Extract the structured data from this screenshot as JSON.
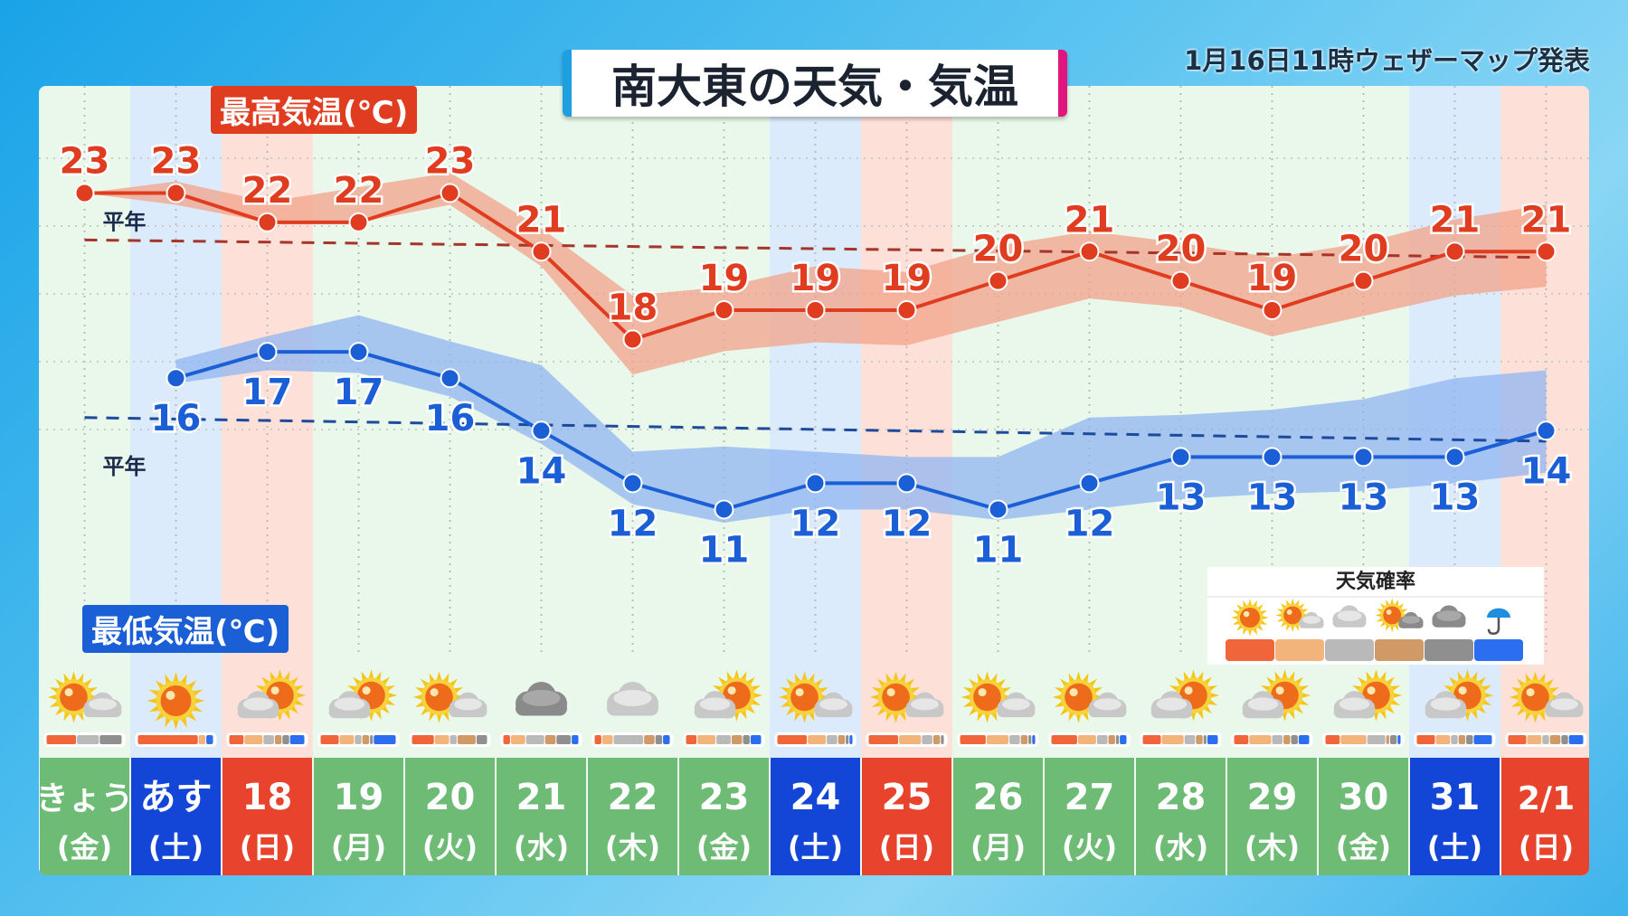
{
  "title": "南大東の天気・気温",
  "issued": "1月16日11時ウェザーマップ発表",
  "colors": {
    "max": "#e03d20",
    "min": "#1b5fd6",
    "weekday": "#6dbb74",
    "saturday": "#1346d6",
    "holiday": "#e8432c"
  },
  "chart_data": {
    "type": "line",
    "title": "南大東の天気・気温",
    "x": [
      "きょう(金)",
      "あす(土)",
      "18(日)",
      "19(月)",
      "20(火)",
      "21(水)",
      "22(木)",
      "23(金)",
      "24(土)",
      "25(日)",
      "26(月)",
      "27(火)",
      "28(水)",
      "29(木)",
      "30(金)",
      "31(土)",
      "2/1(日)"
    ],
    "series": [
      {
        "name": "最高気温(℃)",
        "values": [
          23,
          23,
          22,
          22,
          23,
          21,
          18,
          19,
          19,
          19,
          20,
          21,
          20,
          19,
          20,
          21,
          21
        ],
        "range_low": [
          23,
          22.6,
          22,
          22,
          22.6,
          20.5,
          16.8,
          17.6,
          17.9,
          17.8,
          18.6,
          19.4,
          19.1,
          18.1,
          18.8,
          19.5,
          19.8
        ],
        "range_high": [
          23,
          23.4,
          22.7,
          23.2,
          23.7,
          21.8,
          19.5,
          19.8,
          20.5,
          20.3,
          21.2,
          21.7,
          21.3,
          20.8,
          21.3,
          22.1,
          22.6
        ],
        "normal": {
          "label": "平年",
          "start": 21.4,
          "end": 20.8
        }
      },
      {
        "name": "最低気温(℃)",
        "values": [
          null,
          16,
          17,
          17,
          16,
          14,
          12,
          11,
          12,
          12,
          11,
          12,
          13,
          13,
          13,
          13,
          14
        ],
        "range_low": [
          null,
          15.8,
          16.3,
          16.2,
          15.3,
          13.5,
          11.2,
          10.5,
          11.0,
          11.0,
          10.6,
          11.0,
          11.4,
          11.6,
          11.7,
          12.0,
          12.4
        ],
        "range_high": [
          null,
          16.7,
          17.6,
          18.4,
          17.4,
          16.5,
          13.2,
          13.4,
          13.2,
          13.0,
          13.0,
          14.5,
          14.6,
          14.8,
          15.2,
          16.0,
          16.3
        ],
        "normal": {
          "label": "平年",
          "start": 14.5,
          "end": 13.6
        }
      }
    ]
  },
  "days": [
    {
      "d": "きょう",
      "w": "(金)",
      "type": "weekday",
      "icon": "sun-cloud",
      "prob": [
        40,
        0,
        30,
        0,
        30,
        0
      ]
    },
    {
      "d": "あす",
      "w": "(土)",
      "type": "saturday",
      "icon": "sun",
      "prob": [
        80,
        10,
        0,
        0,
        0,
        10
      ]
    },
    {
      "d": "18",
      "w": "(日)",
      "type": "holiday",
      "icon": "cloud-sun",
      "prob": [
        20,
        25,
        15,
        10,
        10,
        20
      ]
    },
    {
      "d": "19",
      "w": "(月)",
      "type": "weekday",
      "icon": "cloud-sun",
      "prob": [
        25,
        20,
        10,
        10,
        5,
        30
      ]
    },
    {
      "d": "20",
      "w": "(火)",
      "type": "weekday",
      "icon": "sun-cloud",
      "prob": [
        30,
        20,
        10,
        25,
        15,
        0
      ]
    },
    {
      "d": "21",
      "w": "(水)",
      "type": "weekday",
      "icon": "cloud-dark",
      "prob": [
        10,
        20,
        25,
        15,
        20,
        10
      ]
    },
    {
      "d": "22",
      "w": "(木)",
      "type": "weekday",
      "icon": "cloud",
      "prob": [
        10,
        15,
        40,
        15,
        10,
        10
      ]
    },
    {
      "d": "23",
      "w": "(金)",
      "type": "weekday",
      "icon": "cloud-sun",
      "prob": [
        15,
        25,
        20,
        15,
        10,
        15
      ]
    },
    {
      "d": "24",
      "w": "(土)",
      "type": "saturday",
      "icon": "sun-cloud",
      "prob": [
        40,
        25,
        15,
        10,
        5,
        5
      ]
    },
    {
      "d": "25",
      "w": "(日)",
      "type": "holiday",
      "icon": "sun-cloud",
      "prob": [
        40,
        30,
        15,
        10,
        5,
        0
      ]
    },
    {
      "d": "26",
      "w": "(月)",
      "type": "weekday",
      "icon": "sun-cloud",
      "prob": [
        35,
        30,
        15,
        10,
        5,
        5
      ]
    },
    {
      "d": "27",
      "w": "(火)",
      "type": "weekday",
      "icon": "sun-cloud",
      "prob": [
        35,
        25,
        15,
        10,
        5,
        10
      ]
    },
    {
      "d": "28",
      "w": "(水)",
      "type": "weekday",
      "icon": "cloud-sun",
      "prob": [
        25,
        30,
        15,
        10,
        5,
        15
      ]
    },
    {
      "d": "29",
      "w": "(木)",
      "type": "weekday",
      "icon": "cloud-sun",
      "prob": [
        20,
        30,
        15,
        10,
        10,
        15
      ]
    },
    {
      "d": "30",
      "w": "(金)",
      "type": "weekday",
      "icon": "cloud-sun",
      "prob": [
        20,
        35,
        25,
        5,
        10,
        5
      ]
    },
    {
      "d": "31",
      "w": "(土)",
      "type": "saturday",
      "icon": "cloud-sun",
      "prob": [
        25,
        20,
        10,
        10,
        10,
        25
      ]
    },
    {
      "d": "2/1",
      "w": "(日)",
      "type": "holiday",
      "icon": "sun-cloud",
      "prob": [
        25,
        20,
        10,
        15,
        10,
        20
      ]
    }
  ],
  "legend": {
    "title": "天気確率",
    "items": [
      {
        "icon": "sun",
        "color": "#f0653a"
      },
      {
        "icon": "sun-cloud",
        "color": "#f3b47c"
      },
      {
        "icon": "cloud",
        "color": "#b9b9b9"
      },
      {
        "icon": "sun-cloud-dark",
        "color": "#cf9a66"
      },
      {
        "icon": "cloud-dark",
        "color": "#8f8f8f"
      },
      {
        "icon": "umbrella",
        "color": "#2c6ef0"
      }
    ]
  }
}
